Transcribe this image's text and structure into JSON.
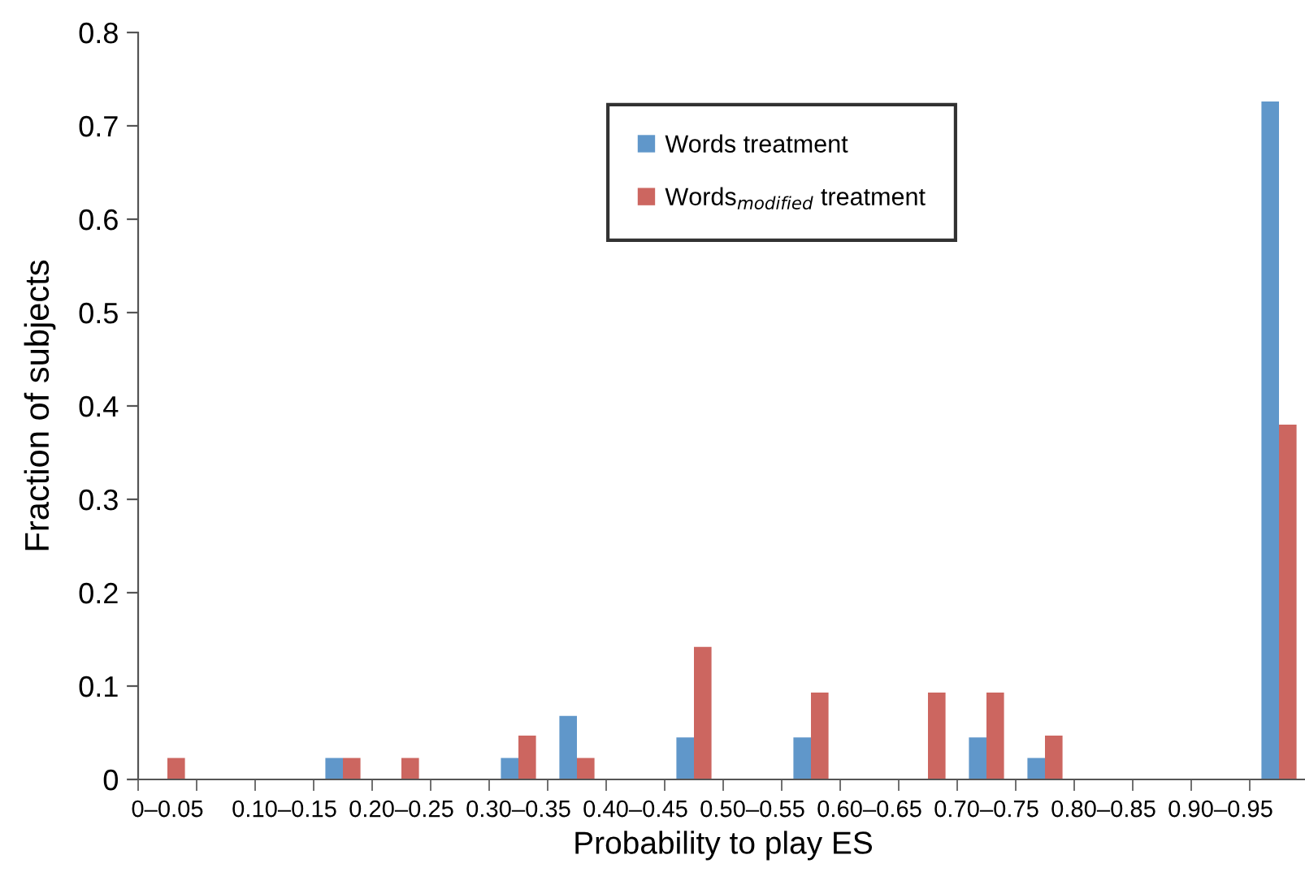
{
  "chart_data": {
    "type": "bar",
    "xlabel": "Probability to play ES",
    "ylabel": "Fraction of subjects",
    "categories": [
      "0–0.05",
      null,
      "0.10–0.15",
      null,
      "0.20–0.25",
      null,
      "0.30–0.35",
      null,
      "0.40–0.45",
      null,
      "0.50–0.55",
      null,
      "0.60–0.65",
      null,
      "0.70–0.75",
      null,
      "0.80–0.85",
      null,
      "0.90–0.95",
      null
    ],
    "series": [
      {
        "name": "Words treatment",
        "color": "#6097ca",
        "values": [
          0,
          0,
          0,
          0.023,
          0,
          0,
          0.023,
          0.068,
          0,
          0.045,
          0,
          0.045,
          0,
          0,
          0.045,
          0.023,
          0,
          0,
          0,
          0.726
        ]
      },
      {
        "name": "Words$_{modified}$ treatment",
        "color": "#cc6660",
        "values": [
          0.023,
          0,
          0,
          0.023,
          0.023,
          0,
          0.047,
          0.023,
          0,
          0.142,
          0,
          0.093,
          0,
          0.093,
          0.093,
          0.047,
          0,
          0,
          0,
          0.38
        ]
      }
    ],
    "ylim": [
      0,
      0.8
    ],
    "yticks": [
      0,
      0.1,
      0.2,
      0.3,
      0.4,
      0.5,
      0.6,
      0.7,
      0.8
    ],
    "grid": false,
    "legend": "top"
  }
}
